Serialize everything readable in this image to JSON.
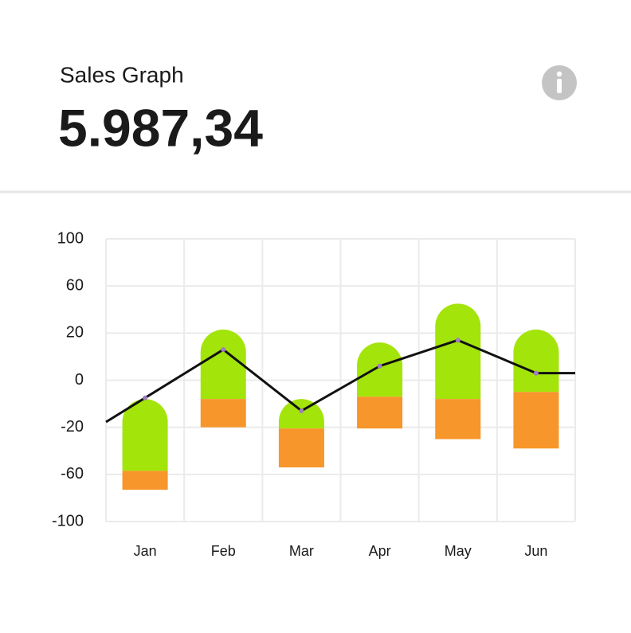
{
  "chart_data": {
    "type": "bar",
    "title": "Sales Graph",
    "subtitle": "5.987,34",
    "categories": [
      "Jan",
      "Feb",
      "Mar",
      "Apr",
      "May",
      "Jun"
    ],
    "series": [
      {
        "color": "#a3e40a",
        "values": [
          [
            -8,
            -57
          ],
          [
            23,
            -8
          ],
          [
            -8,
            -21
          ],
          [
            16,
            -7
          ],
          [
            45,
            -8
          ],
          [
            23,
            -5
          ]
        ]
      },
      {
        "color": "#f7962a",
        "values": [
          [
            -57,
            -73
          ],
          [
            -8,
            -20
          ],
          [
            -21,
            -54
          ],
          [
            -7,
            -21
          ],
          [
            -8,
            -30
          ],
          [
            -5,
            -38
          ]
        ]
      },
      {
        "type": "line",
        "color": "#111111",
        "point_color": "#a07cc0",
        "values": [
          -7.5,
          13,
          -13,
          6,
          17,
          3
        ]
      }
    ],
    "ylim": [
      -100,
      100
    ],
    "yticks": [
      100,
      60,
      20,
      0,
      -20,
      -60,
      -100
    ],
    "grid": true
  }
}
